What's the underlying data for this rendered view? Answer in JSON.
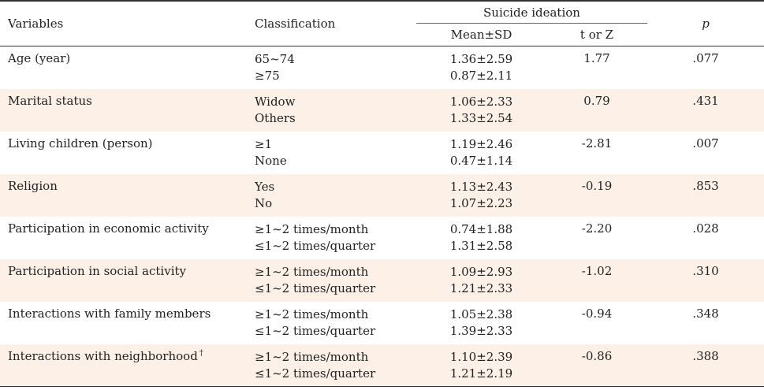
{
  "header": {
    "variables": "Variables",
    "classification": "Classification",
    "suicide_ideation": "Suicide ideation",
    "mean_sd": "Mean±SD",
    "t_or_z": "t or Z",
    "p": "p"
  },
  "rows": [
    {
      "variable": "Age (year)",
      "class1": "65~74",
      "class2": "≥75",
      "mean1": "1.36±2.59",
      "mean2": "0.87±2.11",
      "t": "1.77",
      "p": ".077"
    },
    {
      "variable": "Marital status",
      "class1": "Widow",
      "class2": "Others",
      "mean1": "1.06±2.33",
      "mean2": "1.33±2.54",
      "t": "0.79",
      "p": ".431"
    },
    {
      "variable": "Living children (person)",
      "class1": "≥1",
      "class2": "None",
      "mean1": "1.19±2.46",
      "mean2": "0.47±1.14",
      "t": "-2.81",
      "p": ".007"
    },
    {
      "variable": "Religion",
      "class1": "Yes",
      "class2": "No",
      "mean1": "1.13±2.43",
      "mean2": "1.07±2.23",
      "t": "-0.19",
      "p": ".853"
    },
    {
      "variable": "Participation in economic activity",
      "class1": "≥1~2 times/month",
      "class2": "≤1~2 times/quarter",
      "mean1": "0.74±1.88",
      "mean2": "1.31±2.58",
      "t": "-2.20",
      "p": ".028"
    },
    {
      "variable": "Participation in social activity",
      "class1": "≥1~2 times/month",
      "class2": "≤1~2 times/quarter",
      "mean1": "1.09±2.93",
      "mean2": "1.21±2.33",
      "t": "-1.02",
      "p": ".310"
    },
    {
      "variable": "Interactions with family members",
      "class1": "≥1~2 times/month",
      "class2": "≤1~2 times/quarter",
      "mean1": "1.05±2.38",
      "mean2": "1.39±2.33",
      "t": "-0.94",
      "p": ".348"
    },
    {
      "variable": "Interactions with neighborhood",
      "variable_sup": "†",
      "class1": "≥1~2 times/month",
      "class2": "≤1~2 times/quarter",
      "mean1": "1.10±2.39",
      "mean2": "1.21±2.19",
      "t": "-0.86",
      "p": ".388"
    }
  ]
}
